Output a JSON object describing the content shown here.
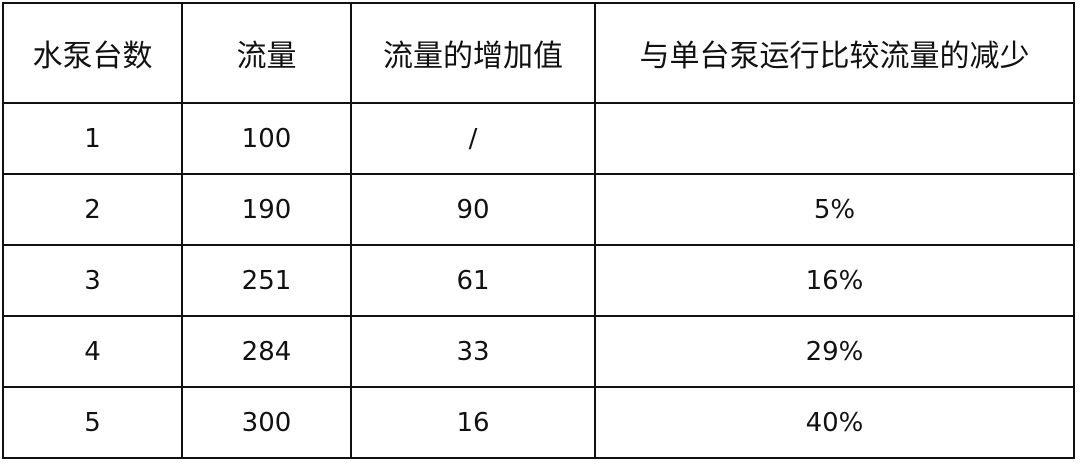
{
  "table": {
    "headers": [
      "水泵台数",
      "流量",
      "流量的增加值",
      "与单台泵运行比较流量的减少"
    ],
    "rows": [
      [
        "1",
        "100",
        "/",
        ""
      ],
      [
        "2",
        "190",
        "90",
        "5%"
      ],
      [
        "3",
        "251",
        "61",
        "16%"
      ],
      [
        "4",
        "284",
        "33",
        "29%"
      ],
      [
        "5",
        "300",
        "16",
        "40%"
      ]
    ]
  }
}
